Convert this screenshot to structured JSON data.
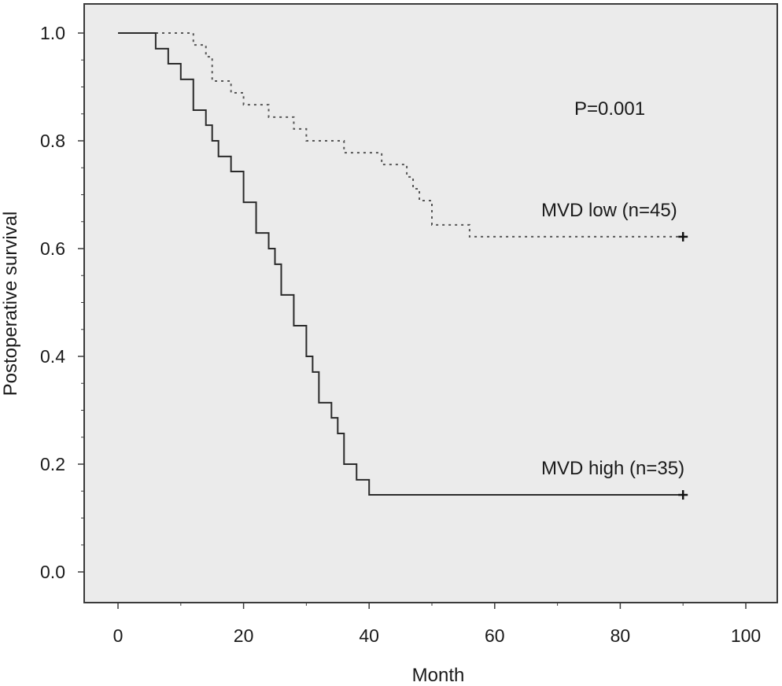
{
  "chart_data": {
    "type": "line",
    "subtype": "kaplan-meier",
    "xlabel": "Month",
    "ylabel": "Postoperative survival",
    "xlim": [
      0,
      100
    ],
    "ylim": [
      0,
      1
    ],
    "x_ticks": [
      0,
      20,
      40,
      60,
      80,
      100
    ],
    "y_ticks": [
      0.0,
      0.2,
      0.4,
      0.6,
      0.8,
      1.0
    ],
    "x_tick_labels": [
      "0",
      "20",
      "40",
      "60",
      "80",
      "100"
    ],
    "y_tick_labels": [
      "0.0",
      "0.2",
      "0.4",
      "0.6",
      "0.8",
      "1.0"
    ],
    "grid": false,
    "plot_background": "#ebebeb",
    "annotation": "P=0.001",
    "series": [
      {
        "name": "MVD low (n=45)",
        "style": "dotted",
        "color": "#555555",
        "censor_mark_at": [
          90,
          0.622
        ],
        "steps": [
          [
            0,
            1.0
          ],
          [
            12,
            0.978
          ],
          [
            14,
            0.956
          ],
          [
            15,
            0.911
          ],
          [
            18,
            0.889
          ],
          [
            20,
            0.867
          ],
          [
            24,
            0.844
          ],
          [
            28,
            0.822
          ],
          [
            30,
            0.8
          ],
          [
            36,
            0.778
          ],
          [
            42,
            0.756
          ],
          [
            46,
            0.733
          ],
          [
            47,
            0.711
          ],
          [
            48,
            0.689
          ],
          [
            50,
            0.644
          ],
          [
            56,
            0.622
          ],
          [
            90,
            0.622
          ]
        ]
      },
      {
        "name": "MVD high (n=35)",
        "style": "solid",
        "color": "#2a2a2a",
        "censor_mark_at": [
          90,
          0.143
        ],
        "steps": [
          [
            0,
            1.0
          ],
          [
            6,
            0.971
          ],
          [
            8,
            0.943
          ],
          [
            10,
            0.914
          ],
          [
            12,
            0.857
          ],
          [
            14,
            0.829
          ],
          [
            15,
            0.8
          ],
          [
            16,
            0.771
          ],
          [
            18,
            0.743
          ],
          [
            20,
            0.686
          ],
          [
            22,
            0.629
          ],
          [
            24,
            0.6
          ],
          [
            25,
            0.571
          ],
          [
            26,
            0.514
          ],
          [
            28,
            0.457
          ],
          [
            30,
            0.4
          ],
          [
            31,
            0.371
          ],
          [
            32,
            0.314
          ],
          [
            34,
            0.286
          ],
          [
            35,
            0.257
          ],
          [
            36,
            0.2
          ],
          [
            38,
            0.171
          ],
          [
            40,
            0.143
          ],
          [
            90,
            0.143
          ]
        ]
      }
    ]
  }
}
